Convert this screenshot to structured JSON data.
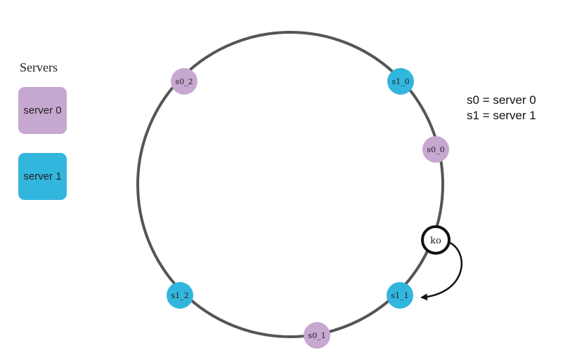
{
  "legend": {
    "title": "Servers",
    "items": [
      {
        "label": "server 0",
        "color": "#c7a8d0"
      },
      {
        "label": "server 1",
        "color": "#32b6dd"
      }
    ]
  },
  "notes": [
    "s0 = server 0",
    "s1 = server 1"
  ],
  "ring": {
    "stroke_color": "#555555",
    "nodes": [
      {
        "label": "s0_2",
        "server": "server 0",
        "color": "#c7a8d0"
      },
      {
        "label": "s1_0",
        "server": "server 1",
        "color": "#32b6dd"
      },
      {
        "label": "s0_0",
        "server": "server 0",
        "color": "#c7a8d0"
      },
      {
        "label": "s1_1",
        "server": "server 1",
        "color": "#32b6dd"
      },
      {
        "label": "s0_1",
        "server": "server 0",
        "color": "#c7a8d0"
      },
      {
        "label": "s1_2",
        "server": "server 1",
        "color": "#32b6dd"
      }
    ],
    "key": {
      "label": "ko",
      "maps_to": "s1_1"
    }
  }
}
